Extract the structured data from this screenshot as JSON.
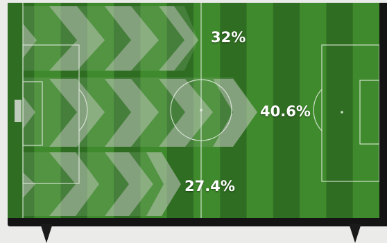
{
  "attack_zones": {
    "top": {
      "label": "32%",
      "value": 32.0
    },
    "middle": {
      "label": "40.6%",
      "value": 40.6
    },
    "bottom": {
      "label": "27.4%",
      "value": 27.4
    }
  },
  "colors": {
    "pitch_dark": "#2f6e22",
    "pitch_light": "#3f8a2c",
    "arrow_fill": "#c8ccc6",
    "arrow_band": "#9fb59a",
    "lines": "#e8efe6",
    "tv_frame": "#141414",
    "background": "#ebebea"
  }
}
